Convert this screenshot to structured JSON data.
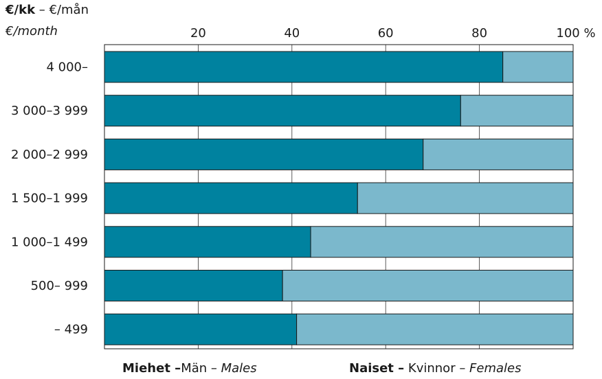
{
  "chart_data": {
    "type": "bar",
    "orientation": "horizontal",
    "stacked": true,
    "header": {
      "line1_bold": "€/kk",
      "line1_rest": " – €/mån",
      "line2_italic": "€/month"
    },
    "x_ticks": [
      "20",
      "40",
      "60",
      "80",
      "100 %"
    ],
    "xlim": [
      0,
      100
    ],
    "categories": [
      "4 000–",
      "3 000–3 999",
      "2 000–2 999",
      "1 500–1 999",
      "1 000–1 499",
      "500– 999",
      "– 499"
    ],
    "series": [
      {
        "name": "Miehet –Män – Males",
        "color": "#00829f",
        "values": [
          85,
          76,
          68,
          54,
          44,
          38,
          41
        ]
      },
      {
        "name": "Naiset – Kvinnor – Females",
        "color": "#7bb8cc",
        "values": [
          15,
          24,
          32,
          46,
          56,
          62,
          59
        ]
      }
    ],
    "grid": true,
    "legend": {
      "position": "bottom",
      "males_bold": "Miehet –",
      "males_rest": "Män – ",
      "males_italic": "Males",
      "females_bold": "Naiset –",
      "females_rest": " Kvinnor – ",
      "females_italic": "Females"
    }
  }
}
